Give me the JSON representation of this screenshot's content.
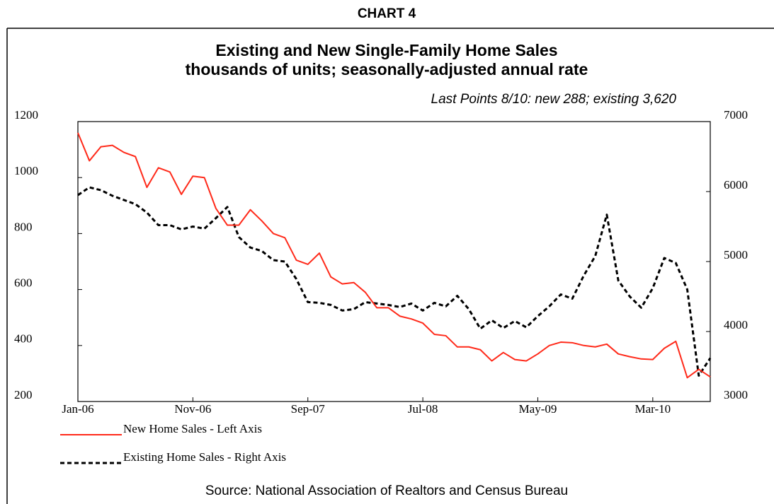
{
  "chart_data": {
    "type": "line",
    "chart_label": "CHART 4",
    "title": "Existing and New Single-Family Home Sales",
    "subtitle": "thousands of units; seasonally-adjusted annual rate",
    "annotation": "Last Points 8/10: new 288; existing 3,620",
    "source": "Source: National Association of Realtors and Census Bureau",
    "categories": [
      "Jan-06",
      null,
      null,
      null,
      null,
      null,
      null,
      null,
      null,
      null,
      "Nov-06",
      null,
      null,
      null,
      null,
      null,
      null,
      null,
      null,
      null,
      "Sep-07",
      null,
      null,
      null,
      null,
      null,
      null,
      null,
      null,
      null,
      "Jul-08",
      null,
      null,
      null,
      null,
      null,
      null,
      null,
      null,
      null,
      "May-09",
      null,
      null,
      null,
      null,
      null,
      null,
      null,
      null,
      null,
      "Mar-10",
      null,
      null,
      null,
      null,
      null
    ],
    "series": [
      {
        "name": "New Home Sales - Left Axis",
        "color": "#ff2a1a",
        "axis": "y",
        "values": [
          1160,
          1060,
          1110,
          1115,
          1090,
          1075,
          965,
          1035,
          1020,
          940,
          1005,
          1000,
          890,
          830,
          830,
          885,
          845,
          800,
          785,
          705,
          690,
          730,
          645,
          620,
          625,
          590,
          535,
          535,
          505,
          495,
          480,
          440,
          435,
          395,
          395,
          385,
          345,
          375,
          350,
          345,
          370,
          400,
          412,
          410,
          400,
          395,
          405,
          370,
          360,
          352,
          350,
          390,
          415,
          285,
          315,
          288
        ]
      },
      {
        "name": "Existing Home Sales - Right Axis",
        "color": "#000000",
        "axis": "y2",
        "values": [
          5950,
          6060,
          6020,
          5940,
          5880,
          5820,
          5700,
          5520,
          5520,
          5460,
          5500,
          5470,
          5620,
          5780,
          5350,
          5200,
          5150,
          5020,
          5000,
          4750,
          4420,
          4410,
          4380,
          4300,
          4320,
          4420,
          4400,
          4380,
          4350,
          4400,
          4300,
          4410,
          4360,
          4510,
          4320,
          4040,
          4160,
          4050,
          4150,
          4060,
          4220,
          4360,
          4530,
          4470,
          4800,
          5080,
          5670,
          4730,
          4500,
          4340,
          4620,
          5050,
          4980,
          4600,
          3370,
          3620
        ]
      }
    ],
    "ylim": [
      200,
      1200
    ],
    "yticks": [
      200,
      400,
      600,
      800,
      1000,
      1200
    ],
    "y2lim": [
      3000,
      7000
    ],
    "y2ticks": [
      3000,
      4000,
      5000,
      6000,
      7000
    ]
  }
}
